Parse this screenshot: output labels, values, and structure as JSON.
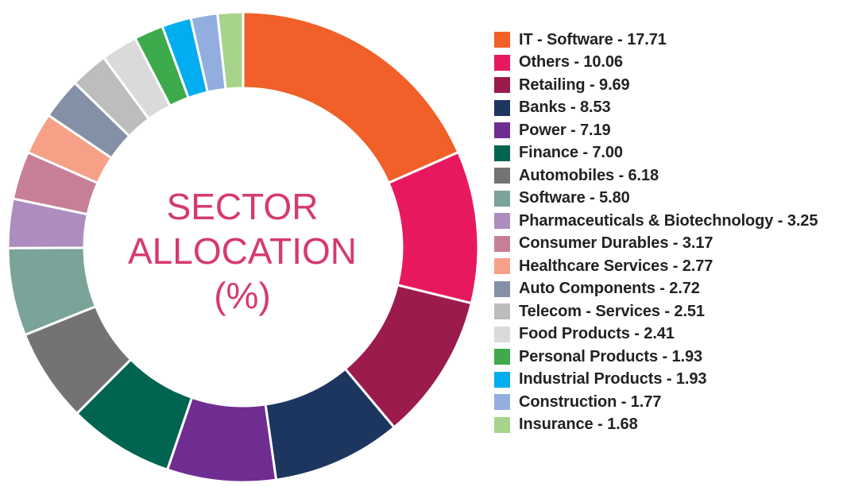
{
  "chart_data": {
    "type": "pie",
    "title_lines": [
      "SECTOR",
      "ALLOCATION",
      "(%)"
    ],
    "categories": [
      "IT - Software",
      "Others",
      "Retailing",
      "Banks",
      "Power",
      "Finance",
      "Automobiles",
      "Software",
      "Pharmaceuticals & Biotechnology",
      "Consumer Durables",
      "Healthcare Services",
      "Auto Components",
      "Telecom - Services",
      "Food Products",
      "Personal Products",
      "Industrial Products",
      "Construction",
      "Insurance"
    ],
    "values": [
      17.71,
      10.06,
      9.69,
      8.53,
      7.19,
      7.0,
      6.18,
      5.8,
      3.25,
      3.17,
      2.77,
      2.72,
      2.51,
      2.41,
      1.93,
      1.93,
      1.77,
      1.68
    ],
    "value_labels": [
      "17.71",
      "10.06",
      "9.69",
      "8.53",
      "7.19",
      "7.00",
      "6.18",
      "5.80",
      "3.25",
      "3.17",
      "2.77",
      "2.72",
      "2.51",
      "2.41",
      "1.93",
      "1.93",
      "1.77",
      "1.68"
    ],
    "colors": [
      "#f06028",
      "#e8185f",
      "#9b1b4d",
      "#1c3660",
      "#702d91",
      "#006451",
      "#737373",
      "#7aa39a",
      "#ad8cc0",
      "#c77f97",
      "#f6a187",
      "#8490a6",
      "#bdbdbd",
      "#dadada",
      "#3daa4b",
      "#00aeef",
      "#91aede",
      "#a8d38b"
    ],
    "legend_position": "right"
  }
}
